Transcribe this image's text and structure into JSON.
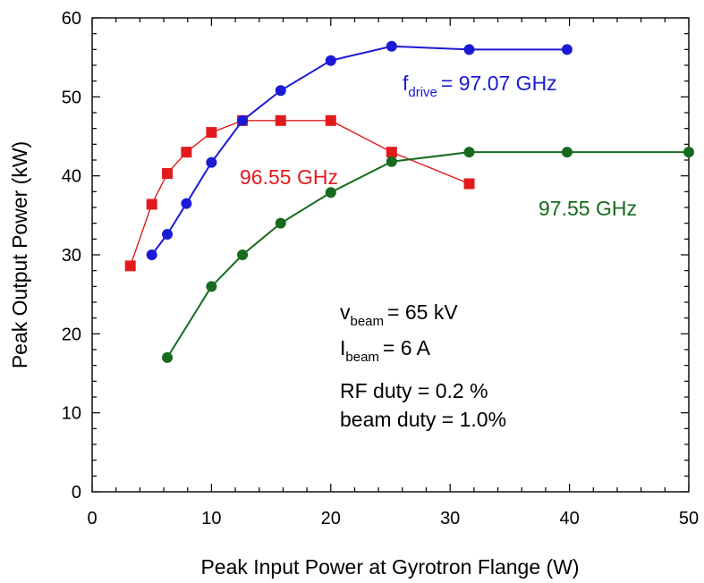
{
  "chart_data": {
    "type": "line",
    "title": "",
    "xlabel": "Peak Input Power at Gyrotron Flange (W)",
    "ylabel": "Peak Output Power (kW)",
    "xlim": [
      0,
      50
    ],
    "ylim": [
      0,
      60
    ],
    "xticks": [
      0,
      10,
      20,
      30,
      40,
      50
    ],
    "yticks": [
      0,
      10,
      20,
      30,
      40,
      50,
      60
    ],
    "grid": false,
    "series": [
      {
        "name": "96.55 GHz",
        "color": "#e31a1c",
        "marker": "square",
        "x": [
          3.2,
          5.0,
          6.3,
          7.9,
          10.0,
          12.6,
          15.8,
          20.0,
          25.1,
          31.6
        ],
        "y": [
          28.6,
          36.4,
          40.3,
          43.0,
          45.5,
          47.0,
          47.0,
          47.0,
          43.0,
          39.0
        ]
      },
      {
        "name": "f_drive = 97.07 GHz",
        "color": "#1a1ad6",
        "marker": "circle",
        "x": [
          5.0,
          6.3,
          7.9,
          10.0,
          12.6,
          15.8,
          20.0,
          25.1,
          31.6,
          39.8
        ],
        "y": [
          30.0,
          32.6,
          36.5,
          41.7,
          47.0,
          50.8,
          54.6,
          56.4,
          56.0,
          56.0
        ]
      },
      {
        "name": "97.55 GHz",
        "color": "#156b1e",
        "marker": "circle",
        "x": [
          6.3,
          10.0,
          12.6,
          15.8,
          20.0,
          25.1,
          31.6,
          39.8,
          50.0
        ],
        "y": [
          17.0,
          26.0,
          30.0,
          34.0,
          37.9,
          41.8,
          43.0,
          43.0,
          43.0
        ]
      }
    ],
    "annotations": {
      "fdrive": {
        "main": "f",
        "sub": "drive",
        "rest": "= 97.07 GHz"
      },
      "red_label": "96.55 GHz",
      "green_label": "97.55 GHz",
      "vbeam": {
        "main": "v",
        "sub": "beam",
        "rest": "= 65 kV"
      },
      "ibeam": {
        "main": "I",
        "sub": "beam",
        "rest": "= 6 A"
      },
      "rf_duty": "RF duty = 0.2 %",
      "beam_duty": "beam duty = 1.0%"
    }
  }
}
